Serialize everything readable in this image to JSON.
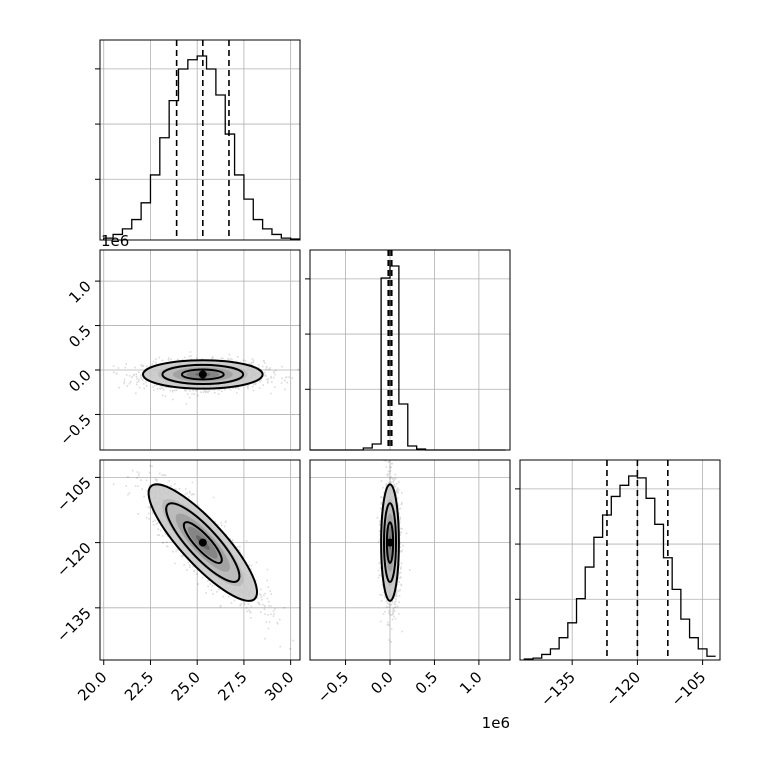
{
  "chart_data": {
    "type": "corner",
    "offset_label_x": "1e6",
    "offset_label_y": "1e6",
    "parameters": [
      {
        "index": 0,
        "range": [
          19.8,
          30.5
        ],
        "ticks": [
          20.0,
          22.5,
          25.0,
          27.5,
          30.0
        ],
        "tick_labels": [
          "20.0",
          "22.5",
          "25.0",
          "27.5",
          "30.0"
        ],
        "quantiles": [
          23.9,
          25.3,
          26.7
        ],
        "histogram": {
          "bin_edges": [
            20.0,
            20.5,
            21.0,
            21.5,
            22.0,
            22.5,
            23.0,
            23.5,
            24.0,
            24.5,
            25.0,
            25.5,
            26.0,
            26.5,
            27.0,
            27.5,
            28.0,
            28.5,
            29.0,
            29.5,
            30.0,
            30.5
          ],
          "counts": [
            1,
            3,
            6,
            11,
            20,
            35,
            55,
            75,
            92,
            97,
            99,
            92,
            78,
            57,
            35,
            22,
            11,
            6,
            3,
            1,
            0.5
          ]
        }
      },
      {
        "index": 1,
        "range": [
          -0.9,
          1.35
        ],
        "ticks": [
          -0.5,
          0.0,
          0.5,
          1.0
        ],
        "tick_labels": [
          "−0.5",
          "0.0",
          "0.5",
          "1.0"
        ],
        "quantiles": [
          -0.02,
          0.0,
          0.02
        ],
        "histogram": {
          "bin_edges": [
            -0.9,
            -0.8,
            -0.7,
            -0.6,
            -0.5,
            -0.4,
            -0.3,
            -0.2,
            -0.1,
            0.0,
            0.1,
            0.2,
            0.3,
            0.4,
            0.5,
            0.6,
            0.7,
            0.8,
            0.9,
            1.0,
            1.1,
            1.2,
            1.3
          ],
          "counts": [
            0,
            0,
            0,
            0,
            0,
            0,
            1,
            3,
            86,
            92,
            23,
            2,
            0.5,
            0,
            0,
            0,
            0,
            0,
            0,
            0,
            0,
            0
          ]
        }
      },
      {
        "index": 2,
        "range": [
          -147,
          -101
        ],
        "ticks": [
          -135,
          -120,
          -105
        ],
        "tick_labels": [
          "−135",
          "−120",
          "−105"
        ],
        "quantiles": [
          -127.0,
          -120.0,
          -113.0
        ],
        "histogram": {
          "bin_edges": [
            -146,
            -144,
            -142,
            -140,
            -138,
            -136,
            -134,
            -132,
            -130,
            -128,
            -126,
            -124,
            -122,
            -120,
            -118,
            -116,
            -114,
            -112,
            -110,
            -108,
            -106,
            -104,
            -102
          ],
          "counts": [
            0.5,
            1,
            3,
            6,
            12,
            20,
            33,
            50,
            66,
            78,
            88,
            94,
            99,
            98,
            87,
            73,
            55,
            38,
            22,
            12,
            6,
            2
          ]
        }
      }
    ],
    "pairs": [
      {
        "x": 0,
        "y": 1,
        "mean": [
          25.3,
          -0.05
        ],
        "sd": [
          1.6,
          0.08
        ],
        "corr": 0.0
      },
      {
        "x": 0,
        "y": 2,
        "mean": [
          25.3,
          -120.0
        ],
        "sd": [
          1.45,
          6.7
        ],
        "corr": -0.85
      },
      {
        "x": 1,
        "y": 2,
        "mean": [
          0.0,
          -120.0
        ],
        "sd": [
          0.05,
          6.7
        ],
        "corr": 0.0
      }
    ]
  }
}
